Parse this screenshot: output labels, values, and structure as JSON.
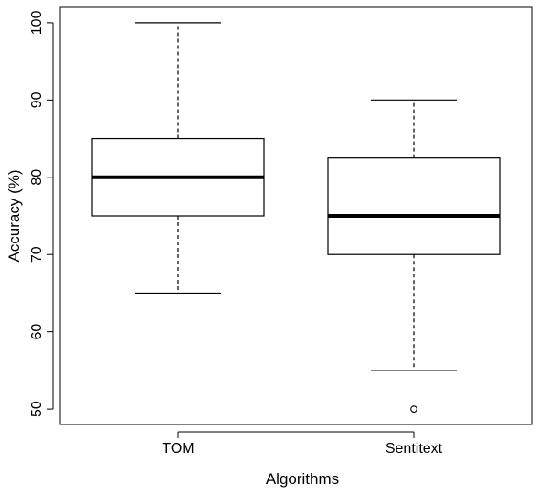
{
  "chart_data": {
    "type": "box",
    "title": "",
    "xlabel": "Algorithms",
    "ylabel": "Accuracy (%)",
    "ylim": [
      48,
      102
    ],
    "yticks": [
      50,
      60,
      70,
      80,
      90,
      100
    ],
    "categories": [
      "TOM",
      "Sentitext"
    ],
    "boxes": [
      {
        "category": "TOM",
        "min": 65,
        "q1": 75,
        "median": 80,
        "q3": 85,
        "max": 100,
        "outliers": []
      },
      {
        "category": "Sentitext",
        "min": 55,
        "q1": 70,
        "median": 75,
        "q3": 82.5,
        "max": 90,
        "outliers": [
          50
        ]
      }
    ],
    "grid": false,
    "legend": "none"
  }
}
